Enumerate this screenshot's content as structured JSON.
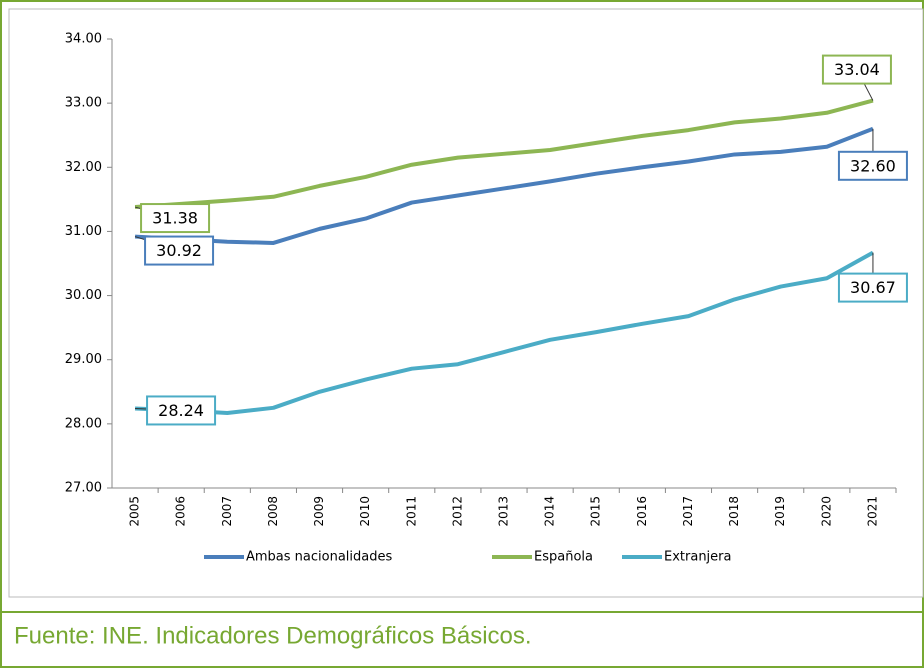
{
  "chart_data": {
    "type": "line",
    "categories": [
      "2005",
      "2006",
      "2007",
      "2008",
      "2009",
      "2010",
      "2011",
      "2012",
      "2013",
      "2014",
      "2015",
      "2016",
      "2017",
      "2018",
      "2019",
      "2020",
      "2021"
    ],
    "series": [
      {
        "name": "Ambas nacionalidades",
        "color": "#4a7ebb",
        "values": [
          30.92,
          30.88,
          30.84,
          30.82,
          31.04,
          31.2,
          31.45,
          31.56,
          31.67,
          31.78,
          31.9,
          32.0,
          32.09,
          32.2,
          32.24,
          32.32,
          32.6
        ],
        "value_labels": [
          "30.92",
          null,
          null,
          null,
          null,
          null,
          null,
          null,
          null,
          null,
          null,
          null,
          null,
          null,
          null,
          null,
          "32.60"
        ]
      },
      {
        "name": "Española",
        "color": "#8db653",
        "values": [
          31.38,
          31.43,
          31.48,
          31.54,
          31.71,
          31.85,
          32.04,
          32.15,
          32.21,
          32.27,
          32.38,
          32.49,
          32.58,
          32.7,
          32.76,
          32.85,
          33.04
        ],
        "value_labels": [
          "31.38",
          null,
          null,
          null,
          null,
          null,
          null,
          null,
          null,
          null,
          null,
          null,
          null,
          null,
          null,
          null,
          "33.04"
        ]
      },
      {
        "name": "Extranjera",
        "color": "#4bacc6",
        "values": [
          28.24,
          28.21,
          28.17,
          28.25,
          28.5,
          28.69,
          28.86,
          28.93,
          29.12,
          29.31,
          29.43,
          29.56,
          29.68,
          29.94,
          30.14,
          30.27,
          30.67
        ],
        "value_labels": [
          "28.24",
          null,
          null,
          null,
          null,
          null,
          null,
          null,
          null,
          null,
          null,
          null,
          null,
          null,
          null,
          null,
          "30.67"
        ]
      }
    ],
    "ylim": [
      27,
      34
    ],
    "yticks": [
      {
        "value": 27,
        "label": "27.00"
      },
      {
        "value": 28,
        "label": "28.00"
      },
      {
        "value": 29,
        "label": "29.00"
      },
      {
        "value": 30,
        "label": "30.00"
      },
      {
        "value": 31,
        "label": "31.00"
      },
      {
        "value": 32,
        "label": "32.00"
      },
      {
        "value": 33,
        "label": "33.00"
      },
      {
        "value": 34,
        "label": "34.00"
      }
    ],
    "grid": false,
    "legend": "bottom",
    "source": "Fuente: INE. Indicadores Demográficos Básicos."
  }
}
